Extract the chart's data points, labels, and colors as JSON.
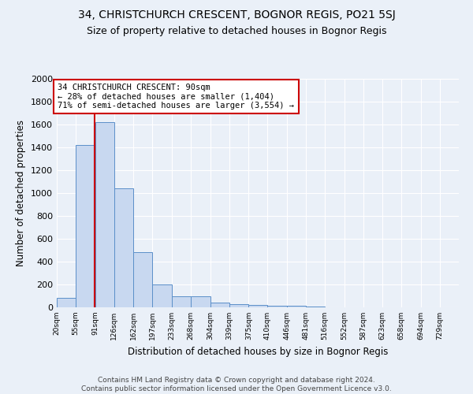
{
  "title_line1": "34, CHRISTCHURCH CRESCENT, BOGNOR REGIS, PO21 5SJ",
  "title_line2": "Size of property relative to detached houses in Bognor Regis",
  "xlabel": "Distribution of detached houses by size in Bognor Regis",
  "ylabel": "Number of detached properties",
  "bin_edges": [
    20,
    55,
    91,
    126,
    162,
    197,
    233,
    268,
    304,
    339,
    375,
    410,
    446,
    481,
    516,
    552,
    587,
    623,
    658,
    694,
    729
  ],
  "bar_heights": [
    80,
    1420,
    1620,
    1040,
    480,
    200,
    100,
    100,
    40,
    30,
    20,
    15,
    15,
    5,
    0,
    0,
    0,
    0,
    0,
    0
  ],
  "bar_color": "#c8d8f0",
  "bar_edge_color": "#5b8fc9",
  "bg_color": "#eaf0f8",
  "grid_color": "#ffffff",
  "property_line_x": 90,
  "property_line_color": "#cc0000",
  "annotation_text": "34 CHRISTCHURCH CRESCENT: 90sqm\n← 28% of detached houses are smaller (1,404)\n71% of semi-detached houses are larger (3,554) →",
  "annotation_box_color": "#ffffff",
  "annotation_box_edge_color": "#cc0000",
  "ylim": [
    0,
    2000
  ],
  "yticks": [
    0,
    200,
    400,
    600,
    800,
    1000,
    1200,
    1400,
    1600,
    1800,
    2000
  ],
  "footnote": "Contains HM Land Registry data © Crown copyright and database right 2024.\nContains public sector information licensed under the Open Government Licence v3.0.",
  "title_fontsize": 10,
  "subtitle_fontsize": 9,
  "annotation_fontsize": 7.5,
  "footnote_fontsize": 6.5
}
